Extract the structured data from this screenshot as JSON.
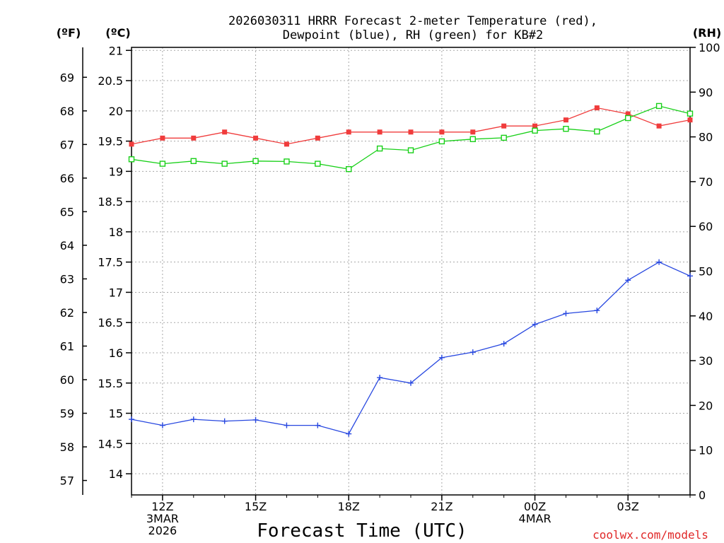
{
  "title": {
    "line1": "2026030311 HRRR Forecast 2-meter Temperature (red),",
    "line2": "Dewpoint (blue), RH (green) for KB#2"
  },
  "units": {
    "fahrenheit": "(ºF)",
    "celsius": "(ºC)",
    "rh": "(RH)"
  },
  "credit": "coolwx.com/models",
  "colors": {
    "temp": "#f03c3c",
    "dew": "#2848e0",
    "rh": "#18d018",
    "credit": "#e02828",
    "axis": "#000000"
  },
  "chart_data": {
    "type": "line",
    "title": "2026030311 HRRR Forecast 2-meter Temperature (red), Dewpoint (blue), RH (green) for KB#2",
    "xlabel": "Forecast Time (UTC)",
    "x_hours": [
      11,
      12,
      13,
      14,
      15,
      16,
      17,
      18,
      19,
      20,
      21,
      22,
      23,
      24,
      25,
      26,
      27,
      28,
      29
    ],
    "xlim": [
      11,
      29
    ],
    "x_ticks": [
      {
        "hour": 12,
        "lines": [
          "12Z",
          "3MAR",
          "2026"
        ]
      },
      {
        "hour": 15,
        "lines": [
          "15Z"
        ]
      },
      {
        "hour": 18,
        "lines": [
          "18Z"
        ]
      },
      {
        "hour": 21,
        "lines": [
          "21Z"
        ]
      },
      {
        "hour": 24,
        "lines": [
          "00Z",
          "4MAR"
        ]
      },
      {
        "hour": 27,
        "lines": [
          "03Z"
        ]
      }
    ],
    "left_axis_c": {
      "label": "(ºC)",
      "ylim": [
        13.65,
        21.05
      ],
      "ticks": [
        "14",
        "14.5",
        "15",
        "15.5",
        "16",
        "16.5",
        "17",
        "17.5",
        "18",
        "18.5",
        "19",
        "19.5",
        "20",
        "20.5",
        "21"
      ]
    },
    "left_axis_f": {
      "label": "(ºF)",
      "ticks": [
        "57",
        "58",
        "59",
        "60",
        "61",
        "62",
        "63",
        "64",
        "65",
        "66",
        "67",
        "68",
        "69"
      ]
    },
    "right_axis_rh": {
      "label": "(RH)",
      "ylim": [
        0,
        100
      ],
      "ticks": [
        "0",
        "10",
        "20",
        "30",
        "40",
        "50",
        "60",
        "70",
        "80",
        "90",
        "100"
      ]
    },
    "series": [
      {
        "name": "2-meter Temperature",
        "axis": "C",
        "marker": "filled-square",
        "values": [
          19.45,
          19.55,
          19.55,
          19.65,
          19.55,
          19.45,
          19.55,
          19.65,
          19.65,
          19.65,
          19.65,
          19.65,
          19.75,
          19.75,
          19.85,
          20.05,
          19.95,
          19.75,
          19.85
        ]
      },
      {
        "name": "Dewpoint",
        "axis": "C",
        "marker": "plus",
        "values": [
          14.9,
          14.8,
          14.9,
          14.87,
          14.89,
          14.8,
          14.8,
          14.66,
          15.59,
          15.5,
          15.92,
          16.01,
          16.15,
          16.47,
          16.65,
          16.7,
          17.2,
          17.5,
          17.27
        ]
      },
      {
        "name": "RH",
        "axis": "RH",
        "marker": "open-square",
        "values": [
          75,
          74,
          74.6,
          74,
          74.6,
          74.5,
          74,
          72.8,
          77.4,
          77,
          79,
          79.5,
          79.8,
          81.4,
          81.8,
          81.2,
          84.2,
          86.9,
          85.2
        ]
      }
    ]
  }
}
